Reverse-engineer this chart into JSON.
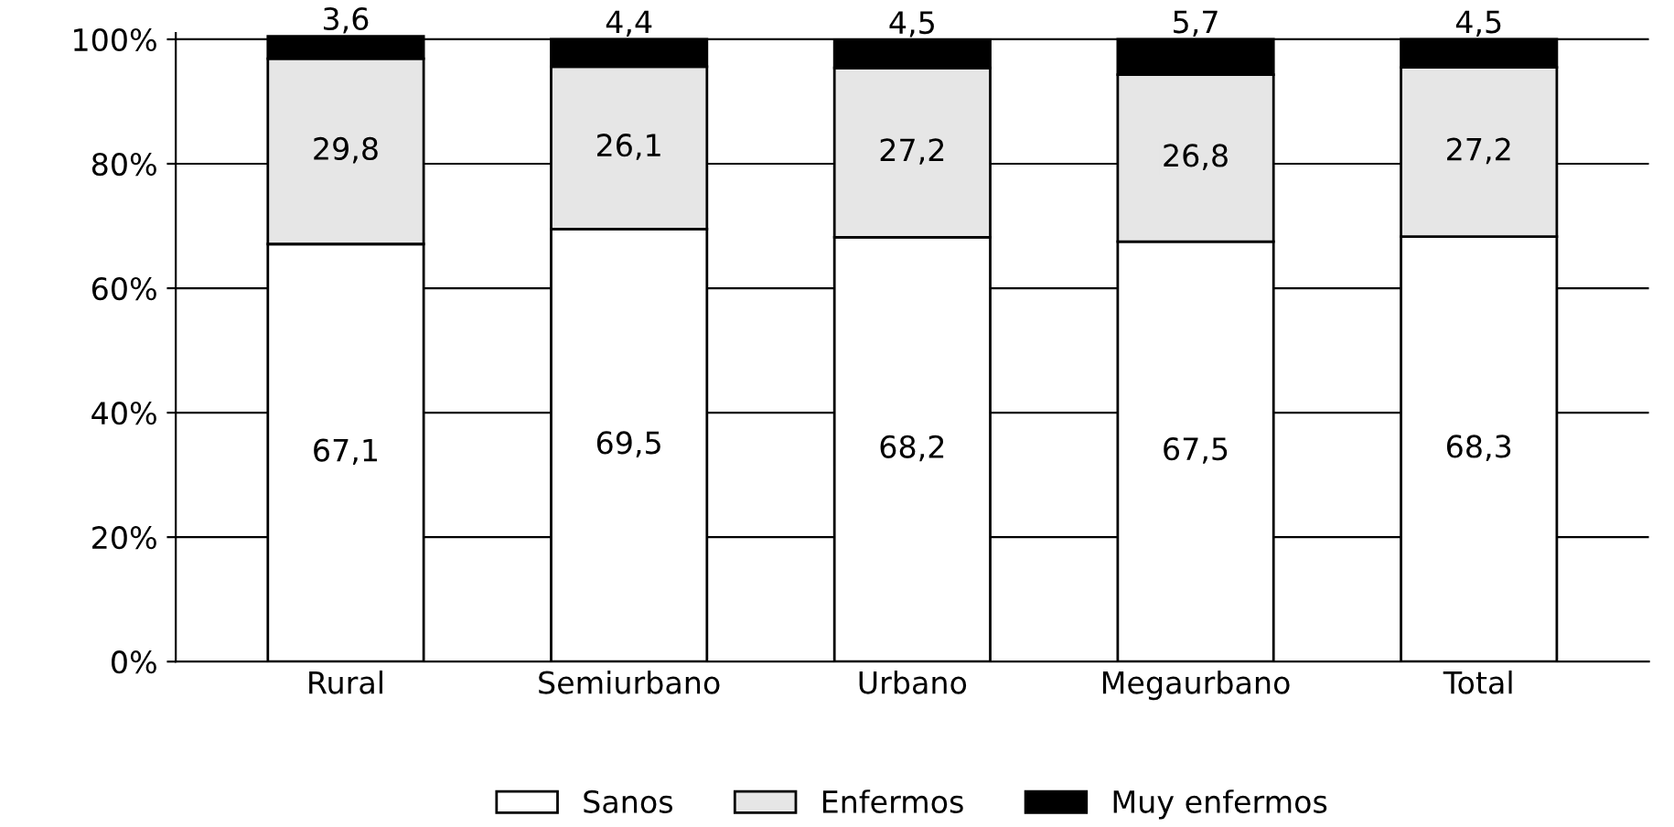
{
  "chart_data": {
    "type": "bar",
    "stacked": true,
    "categories": [
      "Rural",
      "Semiurbano",
      "Urbano",
      "Megaurbano",
      "Total"
    ],
    "series": [
      {
        "name": "Sanos",
        "color": "#ffffff",
        "values": [
          67.1,
          69.5,
          68.2,
          67.5,
          68.3
        ],
        "value_labels": [
          "67,1",
          "69,5",
          "68,2",
          "67,5",
          "68,3"
        ]
      },
      {
        "name": "Enfermos",
        "color": "#e6e6e6",
        "values": [
          29.8,
          26.1,
          27.2,
          26.8,
          27.2
        ],
        "value_labels": [
          "29,8",
          "26,1",
          "27,2",
          "26,8",
          "27,2"
        ]
      },
      {
        "name": "Muy enfermos",
        "color": "#000000",
        "values": [
          3.6,
          4.4,
          4.5,
          5.7,
          4.5
        ],
        "value_labels": [
          "3,6",
          "4,4",
          "4,5",
          "5,7",
          "4,5"
        ]
      }
    ],
    "ylim": [
      0,
      101
    ],
    "yticks": [
      {
        "value": 0,
        "label": "0%"
      },
      {
        "value": 20,
        "label": "20%"
      },
      {
        "value": 40,
        "label": "40%"
      },
      {
        "value": 60,
        "label": "60%"
      },
      {
        "value": 80,
        "label": "80%"
      },
      {
        "value": 100,
        "label": "100%"
      }
    ],
    "grid": "y",
    "legend": "bottom"
  }
}
